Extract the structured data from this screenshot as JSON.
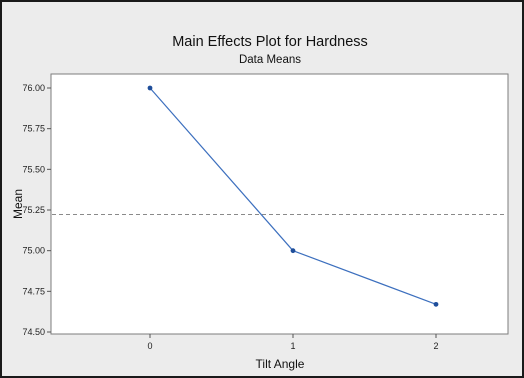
{
  "chart_data": {
    "type": "line",
    "title": "Main Effects Plot for Hardness",
    "subtitle": "Data Means",
    "xlabel": "Tilt Angle",
    "ylabel": "Mean",
    "categories": [
      "0",
      "1",
      "2"
    ],
    "values": [
      76.0,
      75.0,
      74.67
    ],
    "y_ticks": [
      "76.00",
      "75.75",
      "75.50",
      "75.25",
      "75.00",
      "74.75",
      "74.50"
    ],
    "ylim": [
      74.5,
      76.0
    ],
    "reference_line": 75.222,
    "grid": false,
    "colors": {
      "line": "#3c6fbe",
      "marker": "#1f4e9a",
      "reference": "#8a8a8a",
      "plot_background": "#ffffff",
      "figure_background": "#ececec"
    }
  }
}
